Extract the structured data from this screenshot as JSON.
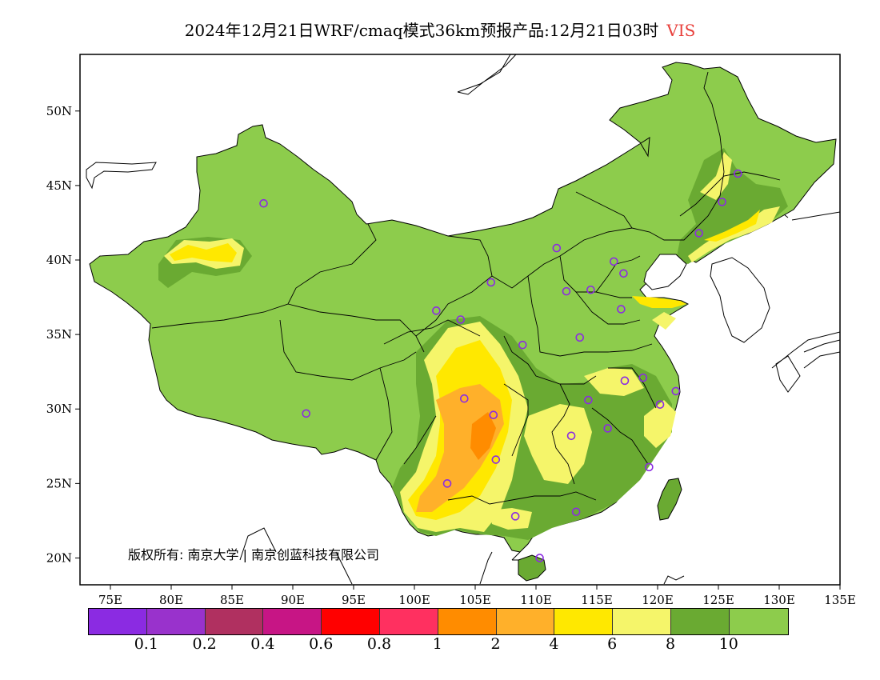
{
  "title": {
    "main": "2024年12月21日WRF/cmaq模式36km预报产品:12月21日03时",
    "variable": "VIS",
    "variable_color": "#e8403c"
  },
  "axes": {
    "lon_range": [
      72.5,
      135
    ],
    "lat_range": [
      18.2,
      53.8
    ],
    "lon_ticks": [
      "75E",
      "80E",
      "85E",
      "90E",
      "95E",
      "100E",
      "105E",
      "110E",
      "115E",
      "120E",
      "125E",
      "130E",
      "135E"
    ],
    "lat_ticks": [
      "20N",
      "25N",
      "30N",
      "35N",
      "40N",
      "45N",
      "50N"
    ]
  },
  "copyright": "版权所有: 南京大学 | 南京创蓝科技有限公司",
  "legend": {
    "colors": [
      "#8b2be2",
      "#9932cc",
      "#b03060",
      "#c71585",
      "#ff0000",
      "#ff3060",
      "#ff8c00",
      "#ffb02a",
      "#ffe800",
      "#f5f56a",
      "#6aaa32",
      "#8dcc4c"
    ],
    "labels": [
      "0.1",
      "0.2",
      "0.4",
      "0.6",
      "0.8",
      "1",
      "2",
      "4",
      "6",
      "8",
      "10"
    ]
  },
  "chart_data": {
    "type": "map",
    "variable": "VIS",
    "stations": [
      {
        "lon": 87.6,
        "lat": 43.8
      },
      {
        "lon": 91.1,
        "lat": 29.7
      },
      {
        "lon": 101.8,
        "lat": 36.6
      },
      {
        "lon": 103.8,
        "lat": 36.0
      },
      {
        "lon": 106.3,
        "lat": 38.5
      },
      {
        "lon": 111.7,
        "lat": 40.8
      },
      {
        "lon": 108.9,
        "lat": 34.3
      },
      {
        "lon": 112.5,
        "lat": 37.9
      },
      {
        "lon": 114.5,
        "lat": 38.0
      },
      {
        "lon": 116.4,
        "lat": 39.9
      },
      {
        "lon": 117.2,
        "lat": 39.1
      },
      {
        "lon": 117.0,
        "lat": 36.7
      },
      {
        "lon": 113.6,
        "lat": 34.8
      },
      {
        "lon": 117.3,
        "lat": 31.9
      },
      {
        "lon": 118.8,
        "lat": 32.1
      },
      {
        "lon": 121.5,
        "lat": 31.2
      },
      {
        "lon": 120.2,
        "lat": 30.3
      },
      {
        "lon": 114.3,
        "lat": 30.6
      },
      {
        "lon": 112.9,
        "lat": 28.2
      },
      {
        "lon": 115.9,
        "lat": 28.7
      },
      {
        "lon": 119.3,
        "lat": 26.1
      },
      {
        "lon": 113.3,
        "lat": 23.1
      },
      {
        "lon": 108.3,
        "lat": 22.8
      },
      {
        "lon": 110.3,
        "lat": 20.0
      },
      {
        "lon": 102.7,
        "lat": 25.0
      },
      {
        "lon": 106.7,
        "lat": 26.6
      },
      {
        "lon": 106.5,
        "lat": 29.6
      },
      {
        "lon": 104.1,
        "lat": 30.7
      },
      {
        "lon": 123.4,
        "lat": 41.8
      },
      {
        "lon": 125.3,
        "lat": 43.9
      },
      {
        "lon": 126.6,
        "lat": 45.8
      }
    ]
  }
}
